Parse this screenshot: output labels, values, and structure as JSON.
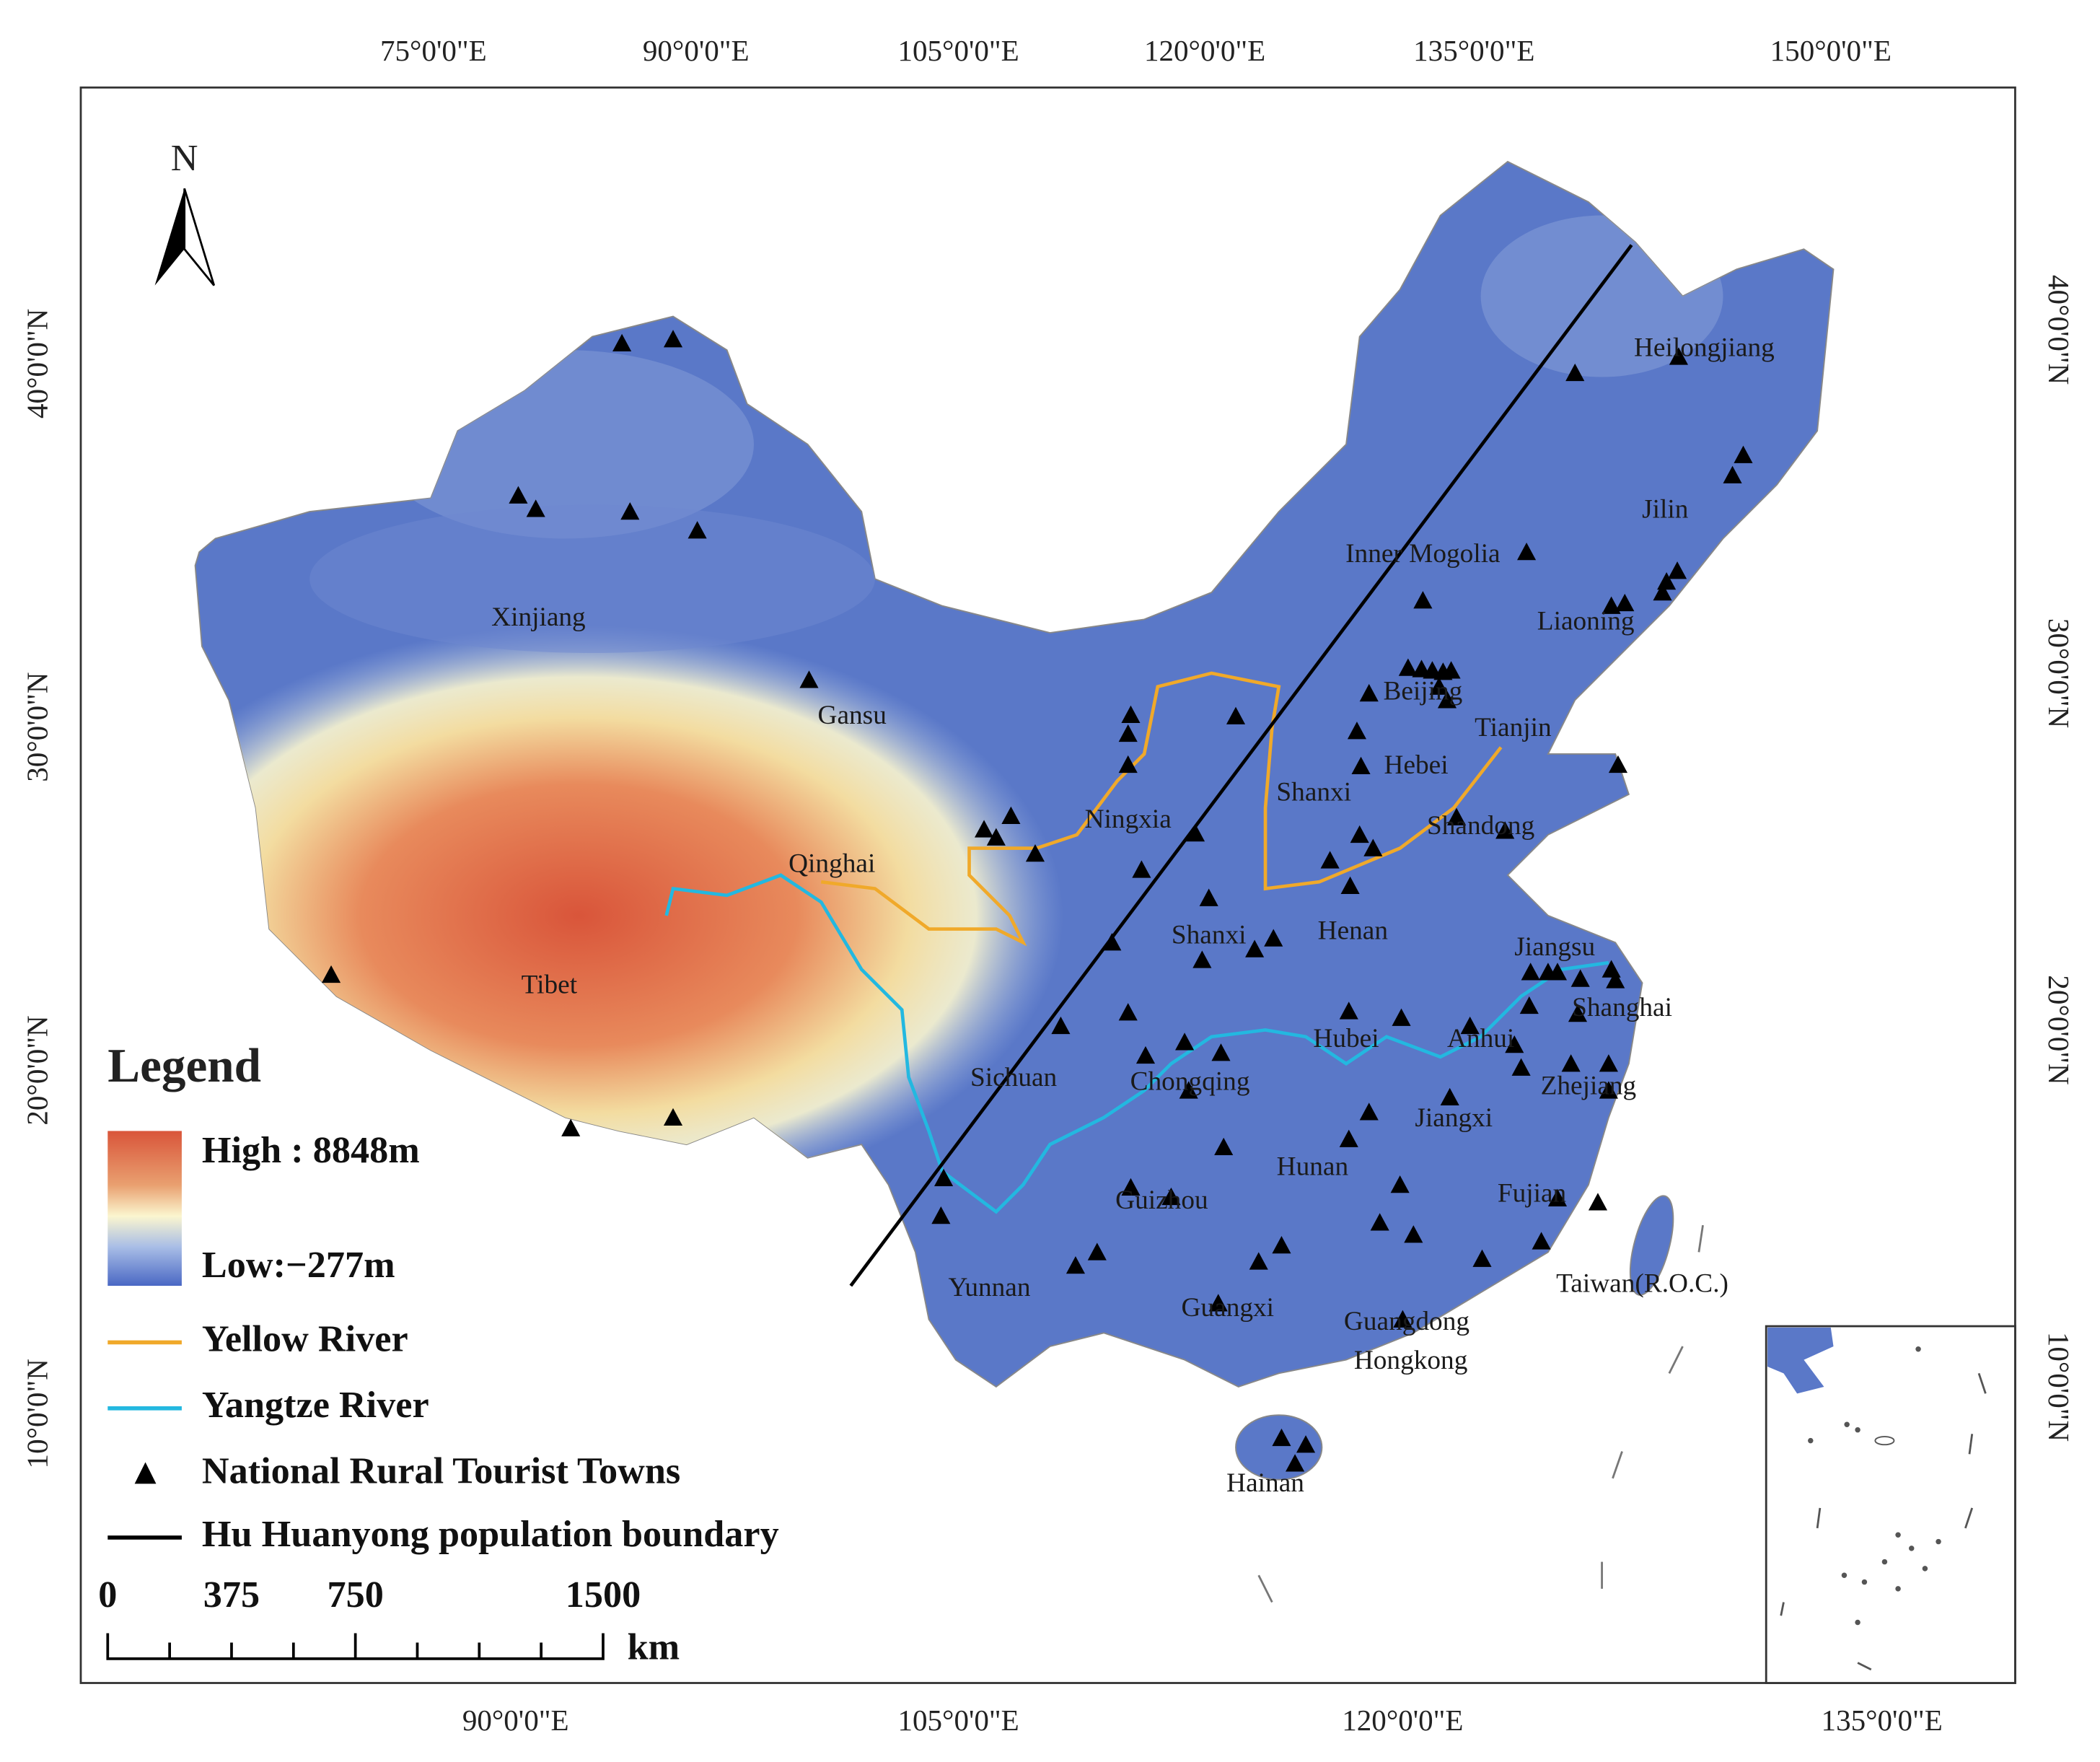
{
  "map": {
    "north": "N",
    "top_longitudes": [
      "75°0'0\"E",
      "90°0'0\"E",
      "105°0'0\"E",
      "120°0'0\"E",
      "135°0'0\"E",
      "150°0'0\"E"
    ],
    "bottom_longitudes": [
      "90°0'0\"E",
      "105°0'0\"E",
      "120°0'0\"E",
      "135°0'0\"E"
    ],
    "left_latitudes": [
      "40°0'0\"N",
      "30°0'0\"N",
      "20°0'0\"N",
      "10°0'0\"N"
    ],
    "right_latitudes": [
      "40°0'0\"N",
      "30°0'0\"N",
      "20°0'0\"N",
      "10°0'0\"N"
    ],
    "regions": [
      "Heilongjiang",
      "Jilin",
      "Inner Mogolia",
      "Liaoning",
      "Xinjiang",
      "Beijing",
      "Tianjin",
      "Gansu",
      "Hebei",
      "Shanxi",
      "Shandong",
      "Ningxia",
      "Qinghai",
      "Henan",
      "Shanxi",
      "Jiangsu",
      "Tibet",
      "Shanghai",
      "Hubei",
      "Anhui",
      "Sichuan",
      "Chongqing",
      "Zhejiang",
      "Jiangxi",
      "Hunan",
      "Guizhou",
      "Fujian",
      "Yunnan",
      "Taiwan(R.O.C.)",
      "Guangxi",
      "Guangdong",
      "Hongkong",
      "Hainan"
    ],
    "legend": {
      "title": "Legend",
      "high": "High : 8848m",
      "low": "Low:−277m",
      "items": [
        "Yellow River",
        "Yangtze River",
        "National Rural Tourist Towns",
        "Hu Huanyong population boundary"
      ]
    },
    "scale": {
      "labels": [
        "0",
        "375",
        "750",
        "1500"
      ],
      "unit": "km"
    }
  }
}
